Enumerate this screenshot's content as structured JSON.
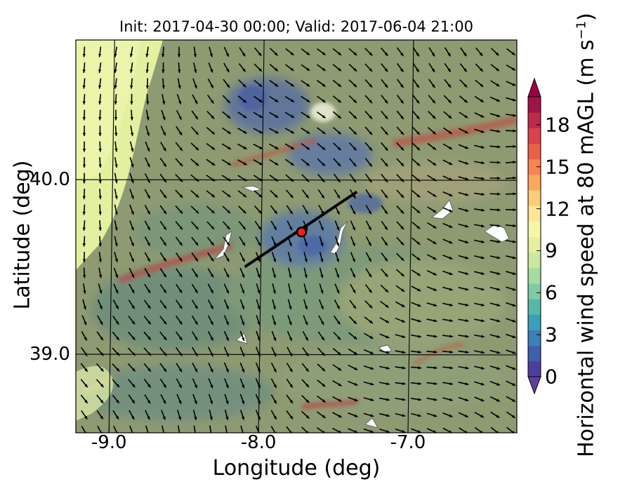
{
  "title": "Init: 2017-04-30 00:00; Valid: 2017-06-04 21:00",
  "x_axis": {
    "label": "Longitude (deg)",
    "ticks": [
      {
        "value": -9.0,
        "label": "-9.0"
      },
      {
        "value": -8.0,
        "label": "-8.0"
      },
      {
        "value": -7.0,
        "label": "-7.0"
      }
    ],
    "range": [
      -9.25,
      -6.3
    ]
  },
  "y_axis": {
    "label": "Latitude (deg)",
    "ticks": [
      {
        "value": 40.0,
        "label": "40.0"
      },
      {
        "value": 39.0,
        "label": "39.0"
      }
    ],
    "range": [
      38.55,
      40.8
    ]
  },
  "colorbar": {
    "label_main": "Horizontal wind speed at 80 mAGL (m s",
    "label_sup": "−1",
    "label_end": ")",
    "range": [
      0,
      20
    ],
    "extend": "both",
    "ticks": [
      {
        "value": 0,
        "label": "0"
      },
      {
        "value": 3,
        "label": "3"
      },
      {
        "value": 6,
        "label": "6"
      },
      {
        "value": 9,
        "label": "9"
      },
      {
        "value": 12,
        "label": "12"
      },
      {
        "value": 15,
        "label": "15"
      },
      {
        "value": 18,
        "label": "18"
      }
    ],
    "colors": [
      "#4b3f9e",
      "#3f5fae",
      "#3d7fba",
      "#3a9fb8",
      "#55b8a9",
      "#7fcca4",
      "#a6dba0",
      "#c9e89d",
      "#e4f19a",
      "#f6f7a6",
      "#fee699",
      "#fdcc7a",
      "#fca85c",
      "#f78451",
      "#ea6047",
      "#d9424a",
      "#c02a4a",
      "#a01449"
    ],
    "under_color": "#5e3f9e",
    "over_color": "#9e0142"
  },
  "map_overlay": {
    "transect": {
      "from": [
        -8.12,
        39.5
      ],
      "to": [
        -7.37,
        39.93
      ],
      "color": "#000000"
    },
    "site_marker": {
      "lon": -7.74,
      "lat": 39.7,
      "fill": "#ff1a1a",
      "edge": "#000000"
    },
    "wind_vector_color": "#000000",
    "gridline_color": "#000000"
  }
}
